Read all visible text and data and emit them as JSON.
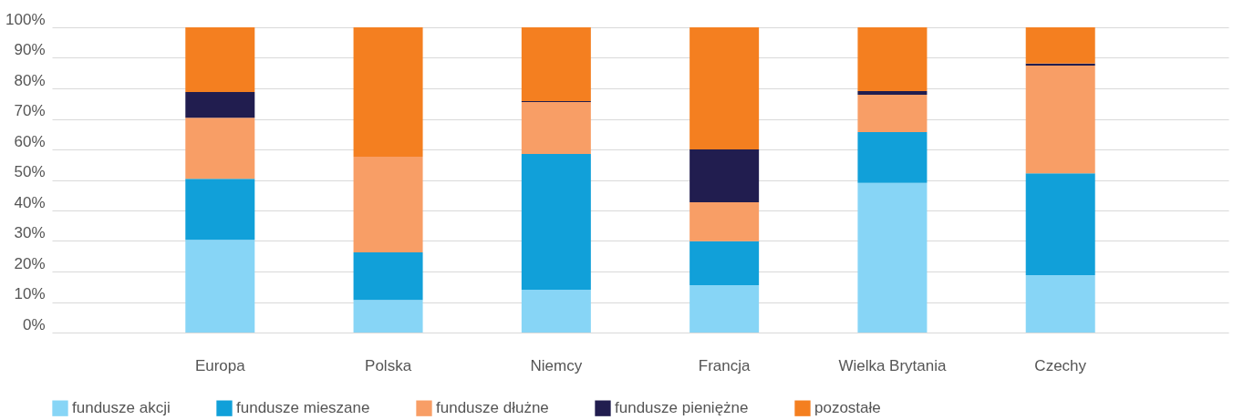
{
  "chart_data": {
    "type": "bar",
    "stacked": true,
    "categories": [
      "Europa",
      "Polska",
      "Niemcy",
      "Francja",
      "Wielka Brytania",
      "Czechy"
    ],
    "series": [
      {
        "name": "fundusze akcji",
        "color": "#87d5f6",
        "values": [
          30.4,
          10.7,
          14,
          15.5,
          49,
          18.8
        ]
      },
      {
        "name": "fundusze mieszane",
        "color": "#11a0d9",
        "values": [
          20,
          15.6,
          44.5,
          14.4,
          16.7,
          33.4
        ]
      },
      {
        "name": "fundusze dłużne",
        "color": "#f89e66",
        "values": [
          20,
          31.3,
          17,
          12.8,
          12.2,
          35.3
        ]
      },
      {
        "name": "fundusze pieniężne",
        "color": "#211d4f",
        "values": [
          8.4,
          0,
          0.3,
          17.3,
          1.2,
          0.6
        ]
      },
      {
        "name": "pozostałe",
        "color": "#f47f20",
        "values": [
          21.2,
          42.4,
          24.2,
          40,
          20.9,
          11.9
        ]
      }
    ],
    "ylim": [
      0,
      100
    ],
    "yticks": [
      {
        "value": 0,
        "label": "0%"
      },
      {
        "value": 10,
        "label": "10%"
      },
      {
        "value": 20,
        "label": "20%"
      },
      {
        "value": 30,
        "label": "30%"
      },
      {
        "value": 40,
        "label": "40%"
      },
      {
        "value": 50,
        "label": "50%"
      },
      {
        "value": 60,
        "label": "60%"
      },
      {
        "value": 70,
        "label": "70%"
      },
      {
        "value": 80,
        "label": "80%"
      },
      {
        "value": 90,
        "label": "90%"
      },
      {
        "value": 100,
        "label": "100%"
      }
    ],
    "grid": "y",
    "legend": "bottom"
  }
}
